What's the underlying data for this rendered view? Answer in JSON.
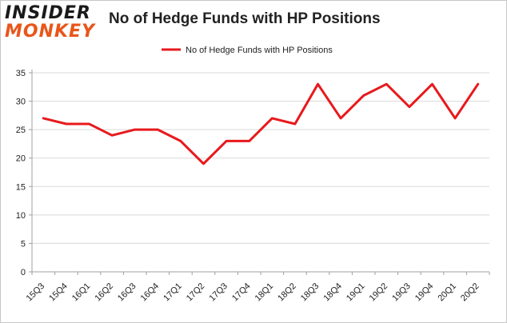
{
  "logo": {
    "line1": "INSIDER",
    "line2": "MONKEY"
  },
  "chart_data": {
    "type": "line",
    "title": "No of Hedge Funds with HP Positions",
    "categories": [
      "15Q3",
      "15Q4",
      "16Q1",
      "16Q2",
      "16Q3",
      "16Q4",
      "17Q1",
      "17Q2",
      "17Q3",
      "17Q4",
      "18Q1",
      "18Q2",
      "18Q3",
      "18Q4",
      "19Q1",
      "19Q2",
      "19Q3",
      "19Q4",
      "20Q1",
      "20Q2"
    ],
    "series": [
      {
        "name": "No of Hedge Funds with HP Positions",
        "color": "#e8191c",
        "values": [
          27,
          26,
          26,
          24,
          25,
          25,
          23,
          19,
          23,
          23,
          27,
          26,
          33,
          27,
          31,
          33,
          29,
          33,
          27,
          33
        ]
      }
    ],
    "ylim": [
      0,
      35
    ],
    "yticks": [
      0,
      5,
      10,
      15,
      20,
      25,
      30,
      35
    ],
    "grid": true,
    "legend": "top-center",
    "colors": {
      "grid": "#d9d9d9",
      "axis": "#a0a0a0",
      "text": "#222222"
    }
  }
}
